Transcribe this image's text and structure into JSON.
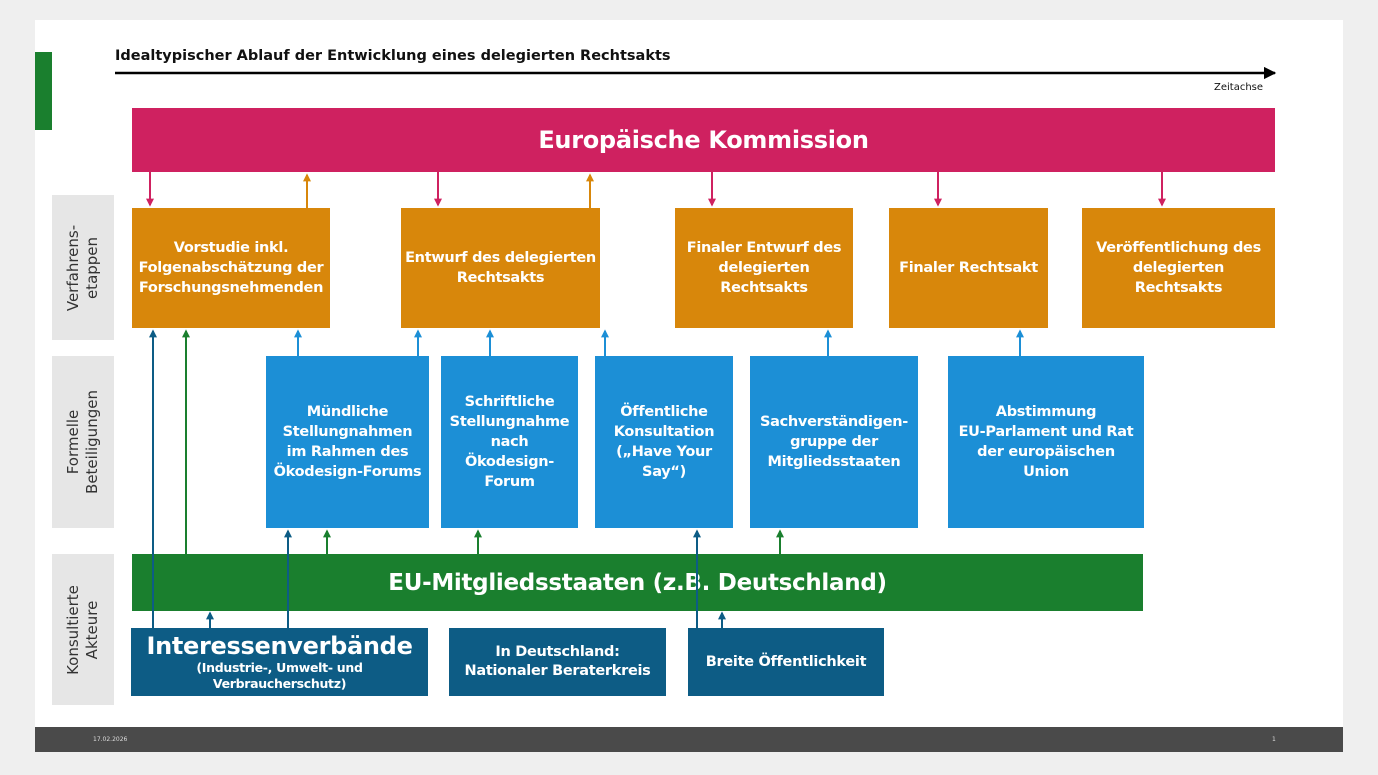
{
  "header": {
    "title": "Idealtypischer Ablauf der Entwicklung eines delegierten Rechtsakts",
    "timeline_label": "Zeitachse"
  },
  "row_labels": [
    [
      "Verfahrens-",
      "etappen"
    ],
    [
      "Formelle",
      "Beteiligungen"
    ],
    [
      "Konsultierte",
      "Akteure"
    ]
  ],
  "commission": "Europäische Kommission",
  "stages": [
    [
      "Vorstudie inkl.",
      "Folgenabschätzung der",
      "Forschungsnehmenden"
    ],
    [
      "Entwurf des delegierten",
      "Rechtsakts"
    ],
    [
      "Finaler Entwurf des",
      "delegierten",
      "Rechtsakts"
    ],
    [
      "Finaler Rechtsakt"
    ],
    [
      "Veröffentlichung des",
      "delegierten",
      "Rechtsakts"
    ]
  ],
  "formal_participation": [
    [
      "Mündliche",
      "Stellungnahmen",
      "im Rahmen des",
      "Ökodesign-Forums"
    ],
    [
      "Schriftliche",
      "Stellungnahme",
      "nach",
      "Ökodesign-",
      "Forum"
    ],
    [
      "Öffentliche",
      "Konsultation",
      "(„Have Your",
      "Say“)"
    ],
    [
      "Sachverständigen-",
      "gruppe der",
      "Mitgliedsstaaten"
    ],
    [
      "Abstimmung",
      "EU-Parlament und Rat",
      "der europäischen",
      "Union"
    ]
  ],
  "member_states": "EU-Mitgliedsstaaten (z.B. Deutschland)",
  "actors": [
    [
      "Interessenverbände",
      "(Industrie-, Umwelt- und",
      "Verbraucherschutz)"
    ],
    [
      "In Deutschland:",
      "Nationaler Beraterkreis"
    ],
    [
      "Breite Öffentlichkeit"
    ]
  ],
  "footer": {
    "date": "17.02.2026",
    "page": "1"
  }
}
